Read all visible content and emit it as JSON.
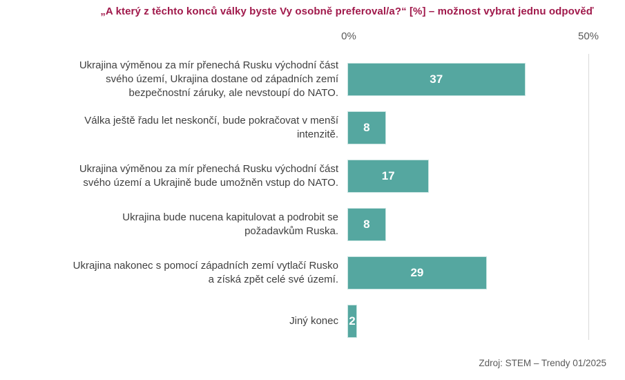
{
  "chart_data": {
    "type": "bar",
    "orientation": "horizontal",
    "title": "„A který z těchto konců války byste Vy osobně preferoval/a?“ [%] – možnost vybrat jednu odpověď",
    "categories": [
      "Ukrajina výměnou za mír přenechá Rusku východní část svého území, Ukrajina dostane od západních zemí bezpečnostní záruky, ale nevstoupí do NATO.",
      "Válka ještě řadu let neskončí, bude pokračovat v menší intenzitě.",
      "Ukrajina výměnou za mír přenechá Rusku východní část svého území a Ukrajině bude umožněn vstup do NATO.",
      "Ukrajina bude nucena kapitulovat a podrobit se požadavkům Ruska.",
      "Ukrajina nakonec s pomocí západních zemí vytlačí Rusko a získá zpět celé své území.",
      "Jiný konec"
    ],
    "values": [
      37,
      8,
      17,
      8,
      29,
      2
    ],
    "xlim": [
      0,
      50
    ],
    "x_ticks": [
      "0%",
      "50%"
    ],
    "xlabel": "",
    "ylabel": "",
    "grid": "single vertical gridline at 50%",
    "legend": "none",
    "value_labels": "white, bold, centered inside bars",
    "source": "Zdroj: STEM – Trendy 01/2025"
  },
  "colors": {
    "title-color": "#A0194B",
    "bar-color": "#55A7A0",
    "bar-border": "#C9E5E2",
    "value-text": "#FFFFFF",
    "label-text": "#3F3F3F",
    "axis-text": "#595959",
    "gridline-color": "#D9D9D9",
    "source-text": "#595959"
  }
}
